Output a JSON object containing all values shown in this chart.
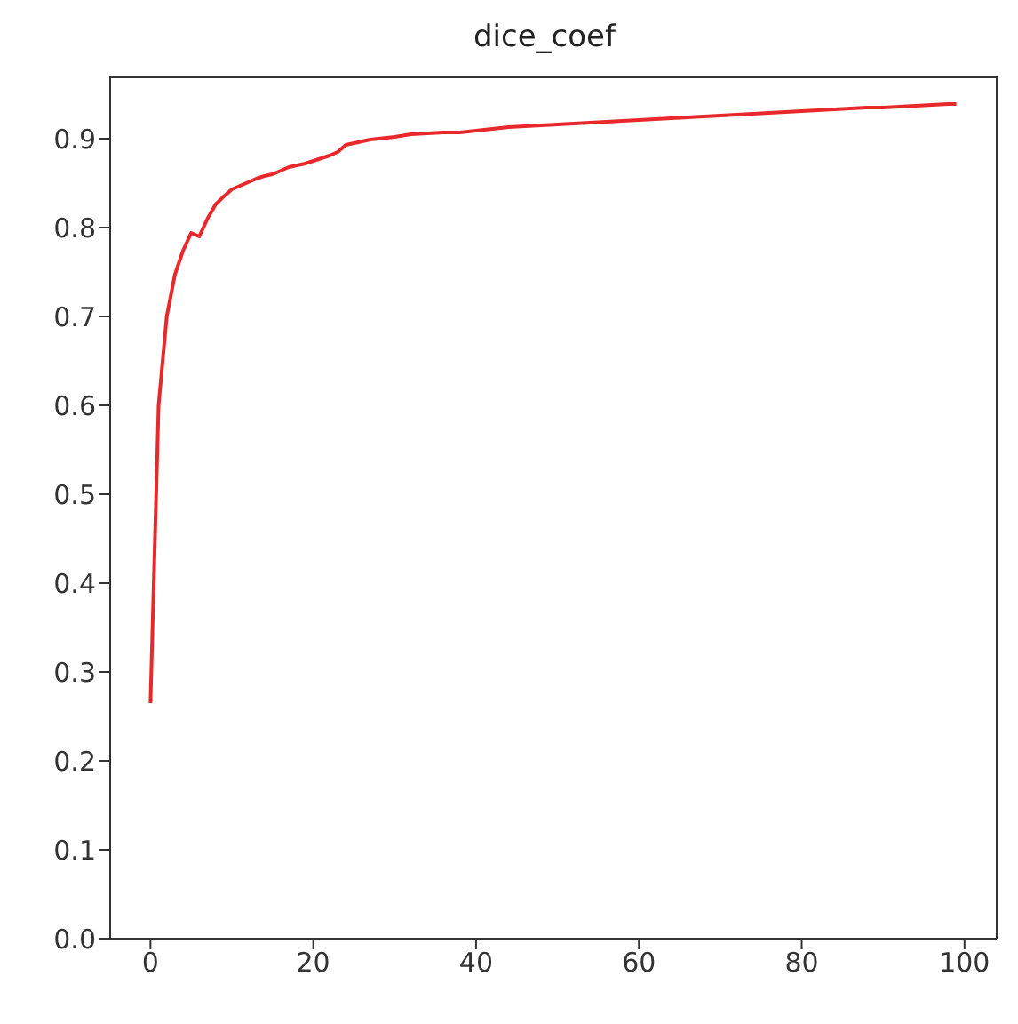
{
  "chart_data": {
    "type": "line",
    "title": "dice_coef",
    "x": [
      0,
      1,
      2,
      3,
      4,
      5,
      6,
      7,
      8,
      9,
      10,
      11,
      12,
      13,
      14,
      15,
      16,
      17,
      18,
      19,
      20,
      21,
      22,
      23,
      24,
      25,
      26,
      27,
      28,
      29,
      30,
      32,
      34,
      36,
      38,
      40,
      42,
      44,
      46,
      48,
      50,
      52,
      54,
      56,
      58,
      60,
      62,
      64,
      66,
      68,
      70,
      72,
      74,
      76,
      78,
      80,
      82,
      84,
      86,
      88,
      90,
      92,
      94,
      96,
      98,
      99
    ],
    "series": [
      {
        "color": "#e8282b",
        "values": [
          0.265,
          0.6,
          0.7,
          0.747,
          0.774,
          0.794,
          0.79,
          0.81,
          0.826,
          0.835,
          0.843,
          0.847,
          0.851,
          0.855,
          0.858,
          0.86,
          0.864,
          0.868,
          0.87,
          0.872,
          0.875,
          0.878,
          0.881,
          0.885,
          0.893,
          0.895,
          0.897,
          0.899,
          0.9,
          0.901,
          0.902,
          0.905,
          0.906,
          0.907,
          0.907,
          0.909,
          0.911,
          0.913,
          0.914,
          0.915,
          0.916,
          0.917,
          0.918,
          0.919,
          0.92,
          0.921,
          0.922,
          0.923,
          0.924,
          0.925,
          0.926,
          0.927,
          0.928,
          0.929,
          0.93,
          0.931,
          0.932,
          0.933,
          0.934,
          0.935,
          0.935,
          0.936,
          0.937,
          0.938,
          0.939,
          0.939
        ]
      }
    ],
    "xlim": [
      -4.95,
      103.95
    ],
    "xticks": [
      0,
      20,
      40,
      60,
      80,
      100
    ],
    "ylim": [
      0,
      0.97
    ],
    "yticks": [
      {
        "value": 0,
        "label": "0.0"
      },
      0.1,
      0.2,
      0.3,
      0.4,
      0.5,
      0.6,
      0.7,
      0.8,
      0.9
    ],
    "grid": false,
    "legend": false,
    "marker": "none",
    "line_style": "solid"
  }
}
